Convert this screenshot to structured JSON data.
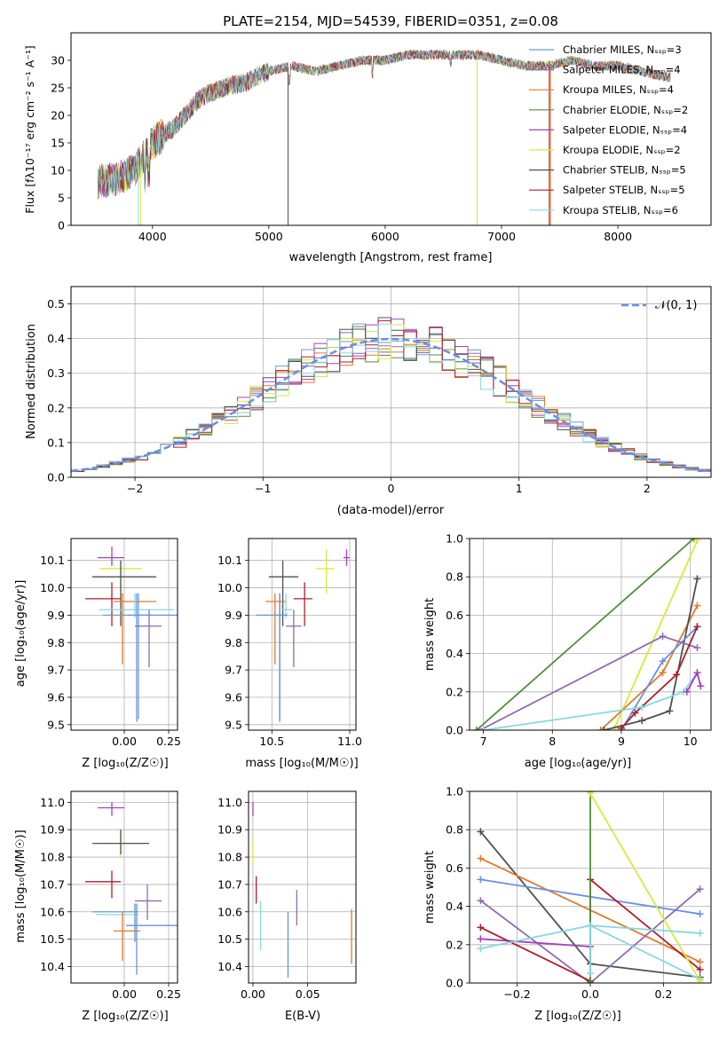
{
  "palette": {
    "chabrier_miles": "#6b9fc4",
    "salpeter_miles": "#8e6ab0",
    "kroupa_miles": "#e07a2a",
    "chabrier_elodie": "#4f8f3c",
    "salpeter_elodie": "#a63fbf",
    "kroupa_elodie": "#d8ea38",
    "chabrier_stelib": "#505050",
    "salpeter_stelib": "#b01c2a",
    "kroupa_stelib": "#86d8e2",
    "normal": "#6690e6"
  },
  "chart_data": [
    {
      "type": "line",
      "title": "PLATE=2154, MJD=54539, FIBERID=0351, z=0.08",
      "xlabel": "wavelength [Angstrom, rest frame]",
      "ylabel": "Flux [fλ10⁻¹⁷ erg cm⁻² s⁻¹ A⁻¹]",
      "xlim": [
        3300,
        8800
      ],
      "ylim": [
        0,
        35
      ],
      "xticks": [
        4000,
        5000,
        6000,
        7000,
        8000
      ],
      "yticks": [
        0,
        5,
        10,
        15,
        20,
        25,
        30
      ],
      "legend": [
        "Chabrier MILES, Nₛₛₚ=3",
        "Salpeter MILES, Nₛₛₚ=4",
        "Kroupa MILES, Nₛₛₚ=4",
        "Chabrier ELODIE, Nₛₛₚ=2",
        "Salpeter ELODIE, Nₛₛₚ=4",
        "Kroupa ELODIE, Nₛₛₚ=2",
        "Chabrier STELIB, Nₛₛₚ=5",
        "Salpeter STELIB, Nₛₛₚ=5",
        "Kroupa STELIB, Nₛₛₚ=6"
      ],
      "legend_placement": "top-right",
      "continuum_x": [
        3550,
        3700,
        3850,
        4000,
        4200,
        4400,
        4600,
        4800,
        5000,
        5200,
        5400,
        5600,
        5800,
        6000,
        6200,
        6400,
        6600,
        6800,
        7000,
        7200,
        7400,
        7600,
        7800,
        8000,
        8200,
        8400
      ],
      "continuum_y": [
        8,
        8.5,
        10,
        15,
        18,
        23,
        25,
        26,
        28,
        29,
        28,
        29,
        30,
        30,
        31,
        31,
        31,
        31,
        30,
        29,
        29,
        30,
        29,
        29,
        28,
        27
      ]
    },
    {
      "type": "bar",
      "ylabel": "Normed distribution",
      "xlabel": "(data-model)/error",
      "xlim": [
        -2.5,
        2.5
      ],
      "ylim": [
        0,
        0.55
      ],
      "xticks": [
        -2,
        -1,
        0,
        1,
        2
      ],
      "xtick_labels": [
        "−2",
        "−1",
        "0",
        "1",
        "2"
      ],
      "yticks": [
        0.0,
        0.1,
        0.2,
        0.3,
        0.4,
        0.5
      ],
      "ytick_labels": [
        "0.0",
        "0.1",
        "0.2",
        "0.3",
        "0.4",
        "0.5"
      ],
      "legend": [
        "𝒩(0, 1)"
      ],
      "legend_placement": "top-right",
      "bin_width": 0.1
    },
    {
      "type": "scatter",
      "xlabel": "Z [log₁₀(Z/Z☉)]",
      "ylabel": "age  [log₁₀(age/yr)]",
      "xlim": [
        -0.3,
        0.3
      ],
      "ylim": [
        9.48,
        10.18
      ],
      "xticks": [
        0.0,
        0.25
      ],
      "xtick_labels": [
        "0.00",
        "0.25"
      ],
      "yticks": [
        9.5,
        9.6,
        9.7,
        9.8,
        9.9,
        10.0,
        10.1
      ],
      "ytick_labels": [
        "9.5",
        "9.6",
        "9.7",
        "9.8",
        "9.9",
        "10.0",
        "10.1"
      ],
      "points": [
        {
          "c": "salpeter_elodie",
          "x": -0.07,
          "y": 10.11,
          "xe": [
            0.08,
            0.07
          ],
          "ye": [
            0.03,
            0.04
          ]
        },
        {
          "c": "kroupa_elodie",
          "x": -0.02,
          "y": 10.07,
          "xe": [
            0.12,
            0.12
          ],
          "ye": [
            0.1,
            0.03
          ]
        },
        {
          "c": "chabrier_stelib",
          "x": -0.02,
          "y": 10.04,
          "xe": [
            0.16,
            0.2
          ],
          "ye": [
            0.18,
            0.06
          ]
        },
        {
          "c": "kroupa_miles",
          "x": -0.01,
          "y": 9.95,
          "xe": [
            0.05,
            0.19
          ],
          "ye": [
            0.23,
            0.03
          ]
        },
        {
          "c": "salpeter_stelib",
          "x": -0.07,
          "y": 9.96,
          "xe": [
            0.15,
            0.05
          ],
          "ye": [
            0.1,
            0.06
          ]
        },
        {
          "c": "chabrier_miles",
          "x": 0.08,
          "y": 9.9,
          "xe": [
            0.2,
            0.08
          ],
          "ye": [
            0.38,
            0.08
          ]
        },
        {
          "c": "kroupa_stelib",
          "x": 0.06,
          "y": 9.92,
          "xe": [
            0.2,
            0.22
          ],
          "ye": [
            0.03,
            0.06
          ]
        },
        {
          "c": "normal",
          "x": 0.07,
          "y": 9.9,
          "xe": [
            0.05,
            0.24
          ],
          "ye": [
            0.39,
            0.08
          ]
        },
        {
          "c": "salpeter_miles",
          "x": 0.14,
          "y": 9.86,
          "xe": [
            0.08,
            0.07
          ],
          "ye": [
            0.15,
            0.06
          ]
        }
      ]
    },
    {
      "type": "scatter",
      "xlabel": "mass [log₁₀(M/M☉)]",
      "xlim": [
        10.35,
        11.04
      ],
      "ylim": [
        9.48,
        10.18
      ],
      "xticks": [
        10.5,
        11.0
      ],
      "xtick_labels": [
        "10.5",
        "11.0"
      ],
      "yticks": [
        9.5,
        9.6,
        9.7,
        9.8,
        9.9,
        10.0,
        10.1
      ],
      "ytick_labels": [
        "9.5",
        "9.6",
        "9.7",
        "9.8",
        "9.9",
        "10.0",
        "10.1"
      ],
      "points": [
        {
          "c": "salpeter_elodie",
          "x": 10.98,
          "y": 10.11,
          "xe": [
            0.02,
            0.02
          ],
          "ye": [
            0.03,
            0.03
          ]
        },
        {
          "c": "kroupa_elodie",
          "x": 10.85,
          "y": 10.07,
          "xe": [
            0.07,
            0.05
          ],
          "ye": [
            0.09,
            0.07
          ]
        },
        {
          "c": "chabrier_stelib",
          "x": 10.57,
          "y": 10.04,
          "xe": [
            0.09,
            0.1
          ],
          "ye": [
            0.18,
            0.06
          ]
        },
        {
          "c": "kroupa_miles",
          "x": 10.52,
          "y": 9.95,
          "xe": [
            0.06,
            0.07
          ],
          "ye": [
            0.23,
            0.03
          ]
        },
        {
          "c": "salpeter_stelib",
          "x": 10.71,
          "y": 9.96,
          "xe": [
            0.07,
            0.05
          ],
          "ye": [
            0.1,
            0.06
          ]
        },
        {
          "c": "chabrier_miles",
          "x": 10.55,
          "y": 9.9,
          "xe": [
            0.04,
            0.05
          ],
          "ye": [
            0.38,
            0.08
          ]
        },
        {
          "c": "kroupa_stelib",
          "x": 10.59,
          "y": 9.92,
          "xe": [
            0.03,
            0.04
          ],
          "ye": [
            0.03,
            0.06
          ]
        },
        {
          "c": "normal",
          "x": 10.55,
          "y": 9.9,
          "xe": [
            0.15,
            0.05
          ],
          "ye": [
            0.39,
            0.08
          ]
        },
        {
          "c": "salpeter_miles",
          "x": 10.64,
          "y": 9.86,
          "xe": [
            0.05,
            0.05
          ],
          "ye": [
            0.15,
            0.06
          ]
        }
      ]
    },
    {
      "type": "line",
      "xlabel": "age  [log₁₀(age/yr)]",
      "ylabel": "mass weight",
      "xlim": [
        6.8,
        10.3
      ],
      "ylim": [
        0,
        1.0
      ],
      "xticks": [
        7,
        8,
        9,
        10
      ],
      "xtick_labels": [
        "7",
        "8",
        "9",
        "10"
      ],
      "yticks": [
        0.0,
        0.2,
        0.4,
        0.6,
        0.8,
        1.0
      ],
      "ytick_labels": [
        "0.0",
        "0.2",
        "0.4",
        "0.6",
        "0.8",
        "1.0"
      ],
      "series": [
        {
          "c": "chabrier_elodie",
          "x": [
            6.9,
            10.05
          ],
          "y": [
            0.0,
            1.0
          ]
        },
        {
          "c": "kroupa_elodie",
          "x": [
            8.9,
            10.1
          ],
          "y": [
            0.01,
            0.99
          ]
        },
        {
          "c": "kroupa_miles",
          "x": [
            8.7,
            9.6,
            10.1
          ],
          "y": [
            0.0,
            0.3,
            0.65
          ]
        },
        {
          "c": "chabrier_stelib",
          "x": [
            8.75,
            9.3,
            9.7,
            10.1
          ],
          "y": [
            0.0,
            0.05,
            0.1,
            0.79
          ]
        },
        {
          "c": "normal",
          "x": [
            9.0,
            9.6,
            10.1
          ],
          "y": [
            0.0,
            0.36,
            0.54
          ]
        },
        {
          "c": "salpeter_miles",
          "x": [
            6.95,
            9.6,
            10.1
          ],
          "y": [
            0.0,
            0.49,
            0.43
          ]
        },
        {
          "c": "salpeter_stelib",
          "x": [
            9.0,
            9.2,
            9.8,
            10.1
          ],
          "y": [
            0.01,
            0.09,
            0.29,
            0.54
          ]
        },
        {
          "c": "kroupa_stelib",
          "x": [
            7.0,
            9.3,
            9.9,
            10.1
          ],
          "y": [
            0.0,
            0.12,
            0.2,
            0.3
          ]
        },
        {
          "c": "salpeter_elodie",
          "x": [
            9.95,
            10.1,
            10.15
          ],
          "y": [
            0.2,
            0.3,
            0.23
          ]
        }
      ]
    },
    {
      "type": "scatter",
      "xlabel": "Z [log₁₀(Z/Z☉)]",
      "ylabel": "mass [log₁₀(M/M☉)]",
      "xlim": [
        -0.3,
        0.3
      ],
      "ylim": [
        10.34,
        11.04
      ],
      "xticks": [
        0.0,
        0.25
      ],
      "xtick_labels": [
        "0.00",
        "0.25"
      ],
      "yticks": [
        10.4,
        10.5,
        10.6,
        10.7,
        10.8,
        10.9,
        11.0
      ],
      "ytick_labels": [
        "10.4",
        "10.5",
        "10.6",
        "10.7",
        "10.8",
        "10.9",
        "11.0"
      ],
      "points": [
        {
          "c": "salpeter_elodie",
          "x": -0.07,
          "y": 10.98,
          "xe": [
            0.08,
            0.07
          ],
          "ye": [
            0.03,
            0.02
          ]
        },
        {
          "c": "kroupa_elodie",
          "x": -0.02,
          "y": 10.85,
          "xe": [
            0.12,
            0.12
          ],
          "ye": [
            0.05,
            0.05
          ]
        },
        {
          "c": "chabrier_stelib",
          "x": -0.02,
          "y": 10.85,
          "xe": [
            0.16,
            0.16
          ],
          "ye": [
            0.04,
            0.05
          ]
        },
        {
          "c": "salpeter_stelib",
          "x": -0.07,
          "y": 10.71,
          "xe": [
            0.15,
            0.05
          ],
          "ye": [
            0.06,
            0.04
          ]
        },
        {
          "c": "salpeter_miles",
          "x": 0.13,
          "y": 10.64,
          "xe": [
            0.07,
            0.08
          ],
          "ye": [
            0.07,
            0.06
          ]
        },
        {
          "c": "kroupa_stelib",
          "x": 0.06,
          "y": 10.59,
          "xe": [
            0.22,
            0.02
          ],
          "ye": [
            0.1,
            0.04
          ]
        },
        {
          "c": "chabrier_miles",
          "x": 0.06,
          "y": 10.6,
          "xe": [
            0.24,
            0.02
          ],
          "ye": [
            0.11,
            0.03
          ]
        },
        {
          "c": "kroupa_miles",
          "x": -0.01,
          "y": 10.53,
          "xe": [
            0.05,
            0.1
          ],
          "ye": [
            0.11,
            0.07
          ]
        },
        {
          "c": "normal",
          "x": 0.07,
          "y": 10.55,
          "xe": [
            0.06,
            0.24
          ],
          "ye": [
            0.18,
            0.08
          ]
        }
      ]
    },
    {
      "type": "scatter",
      "xlabel": "E(B-V)",
      "xlim": [
        -0.004,
        0.094
      ],
      "ylim": [
        10.34,
        11.04
      ],
      "xticks": [
        0.0,
        0.05
      ],
      "xtick_labels": [
        "0.00",
        "0.05"
      ],
      "yticks": [
        10.4,
        10.5,
        10.6,
        10.7,
        10.8,
        10.9,
        11.0
      ],
      "ytick_labels": [
        "10.4",
        "10.5",
        "10.6",
        "10.7",
        "10.8",
        "10.9",
        "11.0"
      ],
      "points": [
        {
          "c": "salpeter_elodie",
          "x": 0.0,
          "y": 10.98,
          "xe": [
            0,
            0
          ],
          "ye": [
            0.03,
            0.02
          ]
        },
        {
          "c": "kroupa_elodie",
          "x": 0.0,
          "y": 10.82,
          "xe": [
            0,
            0
          ],
          "ye": [
            0.05,
            0.05
          ]
        },
        {
          "c": "salpeter_stelib",
          "x": 0.003,
          "y": 10.69,
          "xe": [
            0,
            0
          ],
          "ye": [
            0.06,
            0.04
          ]
        },
        {
          "c": "salpeter_miles",
          "x": 0.04,
          "y": 10.62,
          "xe": [
            0,
            0
          ],
          "ye": [
            0.07,
            0.06
          ]
        },
        {
          "c": "kroupa_stelib",
          "x": 0.007,
          "y": 10.56,
          "xe": [
            0,
            0
          ],
          "ye": [
            0.1,
            0.08
          ]
        },
        {
          "c": "normal",
          "x": 0.032,
          "y": 10.48,
          "xe": [
            0,
            0
          ],
          "ye": [
            0.12,
            0.12
          ]
        },
        {
          "c": "kroupa_miles",
          "x": 0.09,
          "y": 10.51,
          "xe": [
            0,
            0
          ],
          "ye": [
            0.1,
            0.1
          ]
        }
      ]
    },
    {
      "type": "line",
      "xlabel": "Z [log₁₀(Z/Z☉)]",
      "ylabel": "mass weight",
      "xlim": [
        -0.33,
        0.33
      ],
      "ylim": [
        0,
        1.0
      ],
      "xticks": [
        -0.2,
        0.0,
        0.2
      ],
      "xtick_labels": [
        "−0.2",
        "0.0",
        "0.2"
      ],
      "yticks": [
        0.0,
        0.2,
        0.4,
        0.6,
        0.8,
        1.0
      ],
      "ytick_labels": [
        "0.0",
        "0.2",
        "0.4",
        "0.6",
        "0.8",
        "1.0"
      ],
      "series": [
        {
          "c": "chabrier_stelib",
          "x": [
            -0.3,
            0.0,
            0.3
          ],
          "y": [
            0.79,
            0.1,
            0.03
          ]
        },
        {
          "c": "kroupa_miles",
          "x": [
            -0.3,
            0.3
          ],
          "y": [
            0.65,
            0.11
          ]
        },
        {
          "c": "normal",
          "x": [
            -0.3,
            0.3
          ],
          "y": [
            0.54,
            0.36
          ]
        },
        {
          "c": "salpeter_miles",
          "x": [
            -0.3,
            0.0,
            0.3
          ],
          "y": [
            0.43,
            0.0,
            0.49
          ]
        },
        {
          "c": "salpeter_elodie",
          "x": [
            -0.3,
            0.0
          ],
          "y": [
            0.23,
            0.19
          ]
        },
        {
          "c": "salpeter_stelib",
          "x": [
            -0.3,
            0.0,
            0.0,
            0.3
          ],
          "y": [
            0.29,
            0.01,
            0.54,
            0.07
          ]
        },
        {
          "c": "kroupa_stelib",
          "x": [
            -0.3,
            0.0,
            0.3
          ],
          "y": [
            0.18,
            0.3,
            0.02
          ]
        },
        {
          "c": "chabrier_elodie",
          "x": [
            0.0,
            0.0
          ],
          "y": [
            0.0,
            1.0
          ]
        },
        {
          "c": "kroupa_elodie",
          "x": [
            0.0,
            0.3
          ],
          "y": [
            0.99,
            0.01
          ]
        },
        {
          "c": "kroupa_stelib",
          "x": [
            0.0,
            0.0,
            0.3
          ],
          "y": [
            0.05,
            0.3,
            0.26
          ]
        }
      ]
    }
  ]
}
